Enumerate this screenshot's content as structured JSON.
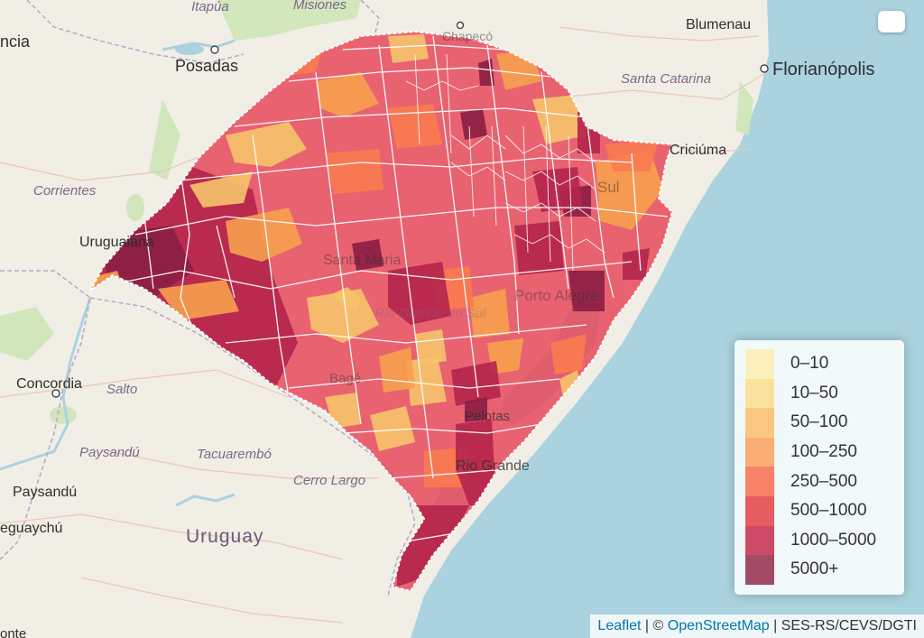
{
  "map": {
    "places": {
      "itapua": "Itapúa",
      "misiones": "Misiones",
      "encarnacion": "ncia",
      "posadas": "Posadas",
      "corrientes": "Corrientes",
      "uruguaiana": "Uruguaiana",
      "concordia": "Concordia",
      "salto": "Salto",
      "paysandu_region": "Paysandú",
      "tacuarembo": "Tacuarembó",
      "cerro_largo": "Cerro Largo",
      "paysandu_city": "Paysandú",
      "gualeguaychu": "eguaychú",
      "uruguay": "Uruguay",
      "blumenau": "Blumenau",
      "santa_catarina": "Santa Catarina",
      "florianopolis": "Florianópolis",
      "criciuma": "Criciúma",
      "chapeco": "Chapecó",
      "santa_maria": "Santa Maria",
      "bage": "Bagé",
      "pelotas": "Pelotas",
      "rio_grande": "Rio Grande",
      "porto_alegre": "Porto Alegre",
      "sul": "Sul",
      "rs_state": "Rio Grande do Sul",
      "bottom_left": "onte"
    },
    "colors": {
      "water": "#aad3df",
      "land": "#f1eee6",
      "border": "#ffffff"
    }
  },
  "legend": {
    "items": [
      {
        "label": "0–10",
        "color": "#ffeda0"
      },
      {
        "label": "10–50",
        "color": "#fed976"
      },
      {
        "label": "50–100",
        "color": "#feb24c"
      },
      {
        "label": "100–250",
        "color": "#fd8d3c"
      },
      {
        "label": "250–500",
        "color": "#fc4e2a"
      },
      {
        "label": "500–1000",
        "color": "#e31a1c"
      },
      {
        "label": "1000–5000",
        "color": "#bd0026"
      },
      {
        "label": "5000+",
        "color": "#800026"
      }
    ]
  },
  "attribution": {
    "leaflet": "Leaflet",
    "sep1": " | © ",
    "osm": "OpenStreetMap",
    "sep2": " | ",
    "source": "SES-RS/CEVS/DGTI"
  }
}
